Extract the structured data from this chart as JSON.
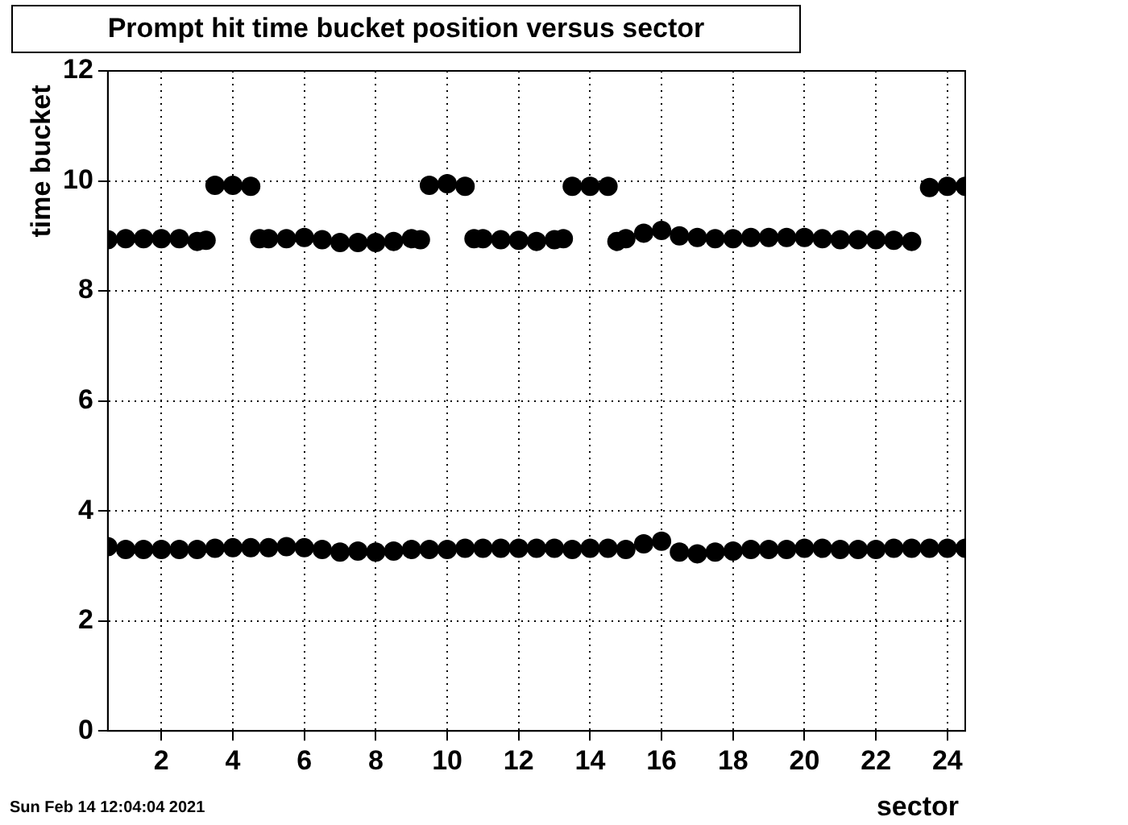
{
  "chart_data": {
    "type": "scatter",
    "title": "Prompt hit time bucket position versus sector",
    "xlabel": "sector",
    "ylabel": "time bucket",
    "annotations": [
      "Sun Feb 14 12:04:04 2021"
    ],
    "xlim": [
      0.5,
      24.5
    ],
    "xticks": [
      2,
      4,
      6,
      8,
      10,
      12,
      14,
      16,
      18,
      20,
      22,
      24
    ],
    "ylim": [
      0,
      12
    ],
    "yticks": [
      0,
      2,
      4,
      6,
      8,
      10,
      12
    ],
    "grid": true,
    "legend": false,
    "marker": "circle",
    "series": [
      {
        "color": "#000000",
        "x": [
          0.5,
          1,
          1.5,
          2,
          2.5,
          3,
          3.5,
          4,
          4.5,
          5,
          5.5,
          6,
          6.5,
          7,
          7.5,
          8,
          8.5,
          9,
          9.5,
          10,
          10.5,
          11,
          11.5,
          12,
          12.5,
          13,
          13.5,
          14,
          14.5,
          15,
          15.5,
          16,
          16.5,
          17,
          17.5,
          18,
          18.5,
          19,
          19.5,
          20,
          20.5,
          21,
          21.5,
          22,
          22.5,
          23,
          23.5,
          24,
          24.5
        ],
        "values": [
          3.35,
          3.3,
          3.3,
          3.3,
          3.3,
          3.3,
          3.32,
          3.33,
          3.33,
          3.33,
          3.35,
          3.33,
          3.3,
          3.25,
          3.27,
          3.25,
          3.27,
          3.3,
          3.3,
          3.3,
          3.32,
          3.32,
          3.32,
          3.32,
          3.32,
          3.32,
          3.3,
          3.32,
          3.32,
          3.3,
          3.4,
          3.45,
          3.25,
          3.22,
          3.25,
          3.27,
          3.3,
          3.3,
          3.3,
          3.32,
          3.32,
          3.3,
          3.3,
          3.3,
          3.32,
          3.32,
          3.32,
          3.32,
          3.32
        ]
      },
      {
        "color": "#000000",
        "x": [
          0.5,
          1,
          1.5,
          2,
          2.5,
          3,
          3.25,
          3.5,
          4,
          4.5,
          4.75,
          5,
          5.5,
          6,
          6.5,
          7,
          7.5,
          8,
          8.5,
          9,
          9.25,
          9.5,
          10,
          10.5,
          10.75,
          11,
          11.5,
          12,
          12.5,
          13,
          13.25,
          13.5,
          14,
          14.5,
          14.75,
          15,
          15.5,
          16,
          16.5,
          17,
          17.5,
          18,
          18.5,
          19,
          19.5,
          20,
          20.5,
          21,
          21.5,
          22,
          22.5,
          23,
          23.5,
          24,
          24.5
        ],
        "values": [
          8.93,
          8.95,
          8.95,
          8.95,
          8.95,
          8.9,
          8.92,
          9.92,
          9.92,
          9.9,
          8.95,
          8.95,
          8.95,
          8.97,
          8.93,
          8.88,
          8.88,
          8.88,
          8.9,
          8.95,
          8.93,
          9.92,
          9.95,
          9.9,
          8.95,
          8.95,
          8.93,
          8.92,
          8.9,
          8.93,
          8.95,
          9.9,
          9.9,
          9.9,
          8.9,
          8.95,
          9.05,
          9.1,
          9.0,
          8.97,
          8.95,
          8.95,
          8.97,
          8.97,
          8.97,
          8.97,
          8.95,
          8.93,
          8.93,
          8.93,
          8.92,
          8.9,
          9.88,
          9.9,
          9.9
        ]
      }
    ]
  }
}
